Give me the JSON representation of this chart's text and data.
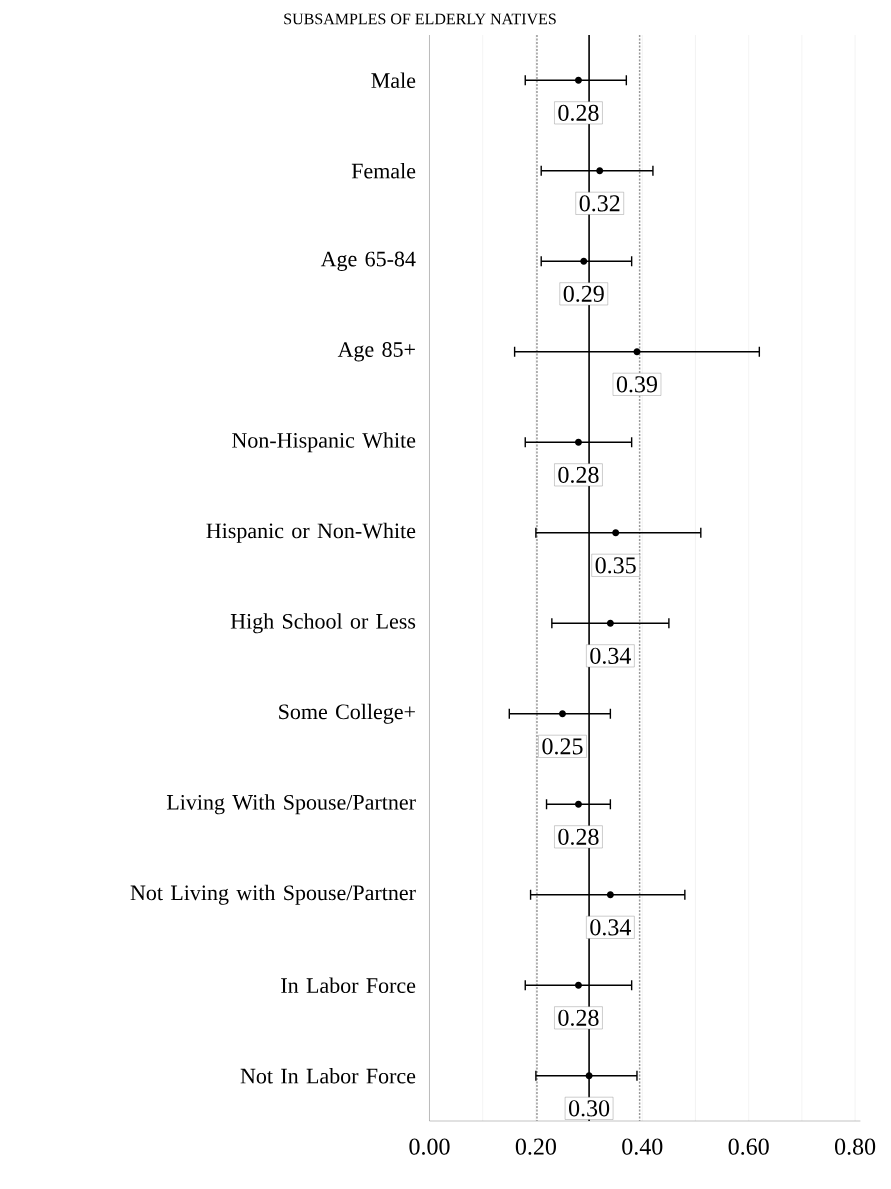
{
  "chart_data": {
    "type": "scatter",
    "orientation": "horizontal",
    "title": "SUBSAMPLES OF ELDERLY NATIVES",
    "categories": [
      "Male",
      "Female",
      "Age 65-84",
      "Age 85+",
      "Non-Hispanic White",
      "Hispanic or Non-White",
      "High School or Less",
      "Some College+",
      "Living With Spouse/Partner",
      "Not Living with Spouse/Partner",
      "In Labor Force",
      "Not In Labor Force"
    ],
    "values": [
      0.28,
      0.32,
      0.29,
      0.39,
      0.28,
      0.35,
      0.34,
      0.25,
      0.28,
      0.34,
      0.28,
      0.3
    ],
    "errors": [
      [
        0.18,
        0.37
      ],
      [
        0.21,
        0.42
      ],
      [
        0.21,
        0.38
      ],
      [
        0.16,
        0.62
      ],
      [
        0.18,
        0.38
      ],
      [
        0.2,
        0.51
      ],
      [
        0.23,
        0.45
      ],
      [
        0.15,
        0.34
      ],
      [
        0.22,
        0.34
      ],
      [
        0.19,
        0.48
      ],
      [
        0.18,
        0.38
      ],
      [
        0.2,
        0.39
      ]
    ],
    "color": "#000000",
    "marker": "circle",
    "data_labels": true,
    "value_labels": [
      "0.28",
      "0.32",
      "0.29",
      "0.39",
      "0.28",
      "0.35",
      "0.34",
      "0.25",
      "0.28",
      "0.34",
      "0.28",
      "0.30"
    ],
    "xlim": [
      0,
      0.81
    ],
    "xticks": [
      {
        "value": 0,
        "label": "0.00"
      },
      {
        "value": 0.1,
        "label": null
      },
      {
        "value": 0.2,
        "label": "0.20"
      },
      {
        "value": 0.3,
        "label": null
      },
      {
        "value": 0.4,
        "label": "0.40"
      },
      {
        "value": 0.5,
        "label": null
      },
      {
        "value": 0.6,
        "label": "0.60"
      },
      {
        "value": 0.7,
        "label": null
      },
      {
        "value": 0.8,
        "label": "0.80"
      }
    ],
    "grid": "x",
    "ref_lines": [
      {
        "axis": "x",
        "value": 0.3,
        "color": "#000000",
        "line_style": "solid"
      },
      {
        "axis": "x",
        "value": 0.202,
        "color": "#999999",
        "line_style": "dotted"
      },
      {
        "axis": "x",
        "value": 0.395,
        "color": "#999999",
        "line_style": "dotted"
      }
    ]
  }
}
